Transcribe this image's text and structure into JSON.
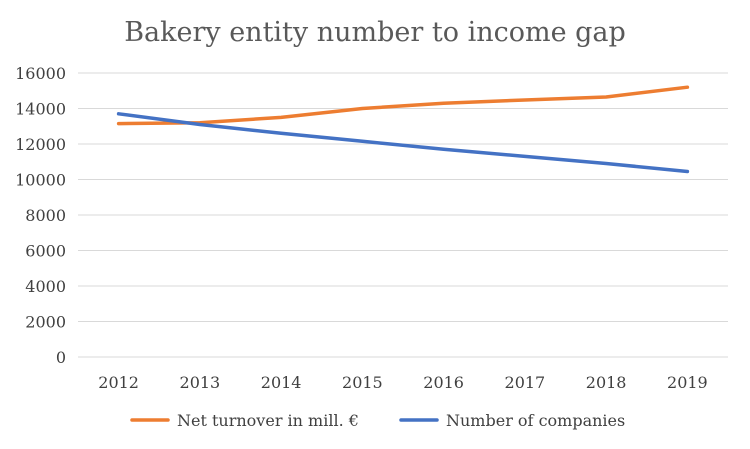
{
  "chart_data": {
    "type": "line",
    "title": "Bakery entity number to income gap",
    "x": [
      "2012",
      "2013",
      "2014",
      "2015",
      "2016",
      "2017",
      "2018",
      "2019"
    ],
    "yticks": [
      "0",
      "2000",
      "4000",
      "6000",
      "8000",
      "10000",
      "12000",
      "14000",
      "16000"
    ],
    "ylim": [
      0,
      16000
    ],
    "grid": true,
    "legend_position": "bottom",
    "series": [
      {
        "name": "Net turnover in mill. €",
        "color": "#ED7D31",
        "values": [
          13150,
          13200,
          13500,
          14000,
          14300,
          14480,
          14650,
          15200
        ]
      },
      {
        "name": "Number of companies",
        "color": "#4472C4",
        "values": [
          13700,
          13100,
          12600,
          12150,
          11700,
          11300,
          10900,
          10450
        ]
      }
    ]
  }
}
